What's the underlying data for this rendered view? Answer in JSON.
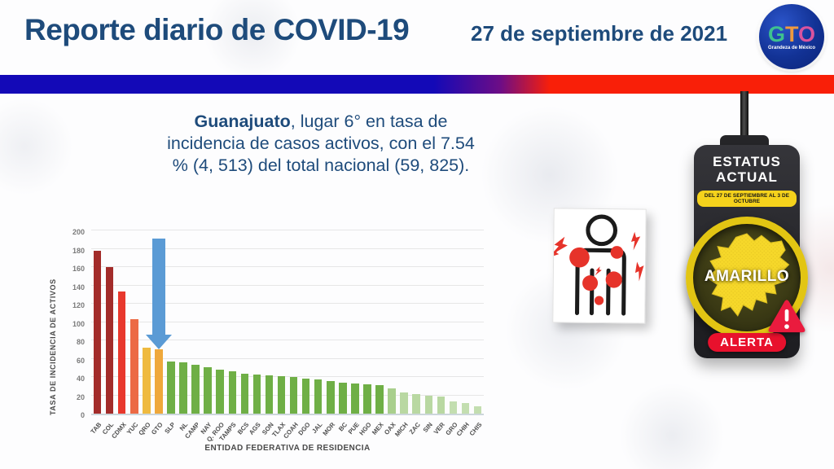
{
  "header": {
    "title": "Reporte diario de COVID-19",
    "date": "27 de septiembre de 2021",
    "logo": {
      "text_g": "G",
      "text_t": "T",
      "text_o": "O",
      "tagline": "Grandeza de México"
    }
  },
  "highlight": {
    "lead": "Guanajuato",
    "rest": ", lugar 6° en tasa de incidencia de casos activos, con el 7.54 % (4, 513) del total nacional (59, 825)."
  },
  "chart_data": {
    "type": "bar",
    "title": "",
    "xlabel": "ENTIDAD FEDERATIVA DE RESIDENCIA",
    "ylabel": "TASA DE INCIDENCIA DE ACTIVOS",
    "ylim": [
      0,
      200
    ],
    "ytick_step": 20,
    "grid": true,
    "legend": "none",
    "categories": [
      "TAB",
      "COL",
      "CDMX",
      "YUC",
      "QRO",
      "GTO",
      "SLP",
      "NL",
      "CAMP",
      "NAY",
      "Q. ROO",
      "TAMPS",
      "BCS",
      "AGS",
      "SON",
      "TLAX",
      "COAH",
      "DGO",
      "JAL",
      "MOR",
      "BC",
      "PUE",
      "HGO",
      "MEX",
      "OAX",
      "MICH",
      "ZAC",
      "SIN",
      "VER",
      "GRO",
      "CHIH",
      "CHIS"
    ],
    "values": [
      178,
      160,
      133,
      103,
      72,
      70,
      57,
      56,
      53,
      51,
      48,
      46,
      44,
      43,
      42,
      41,
      40,
      38,
      37,
      36,
      34,
      33,
      32,
      31,
      28,
      23,
      21,
      20,
      19,
      13,
      12,
      8
    ],
    "colors": [
      "#a32c2a",
      "#a32c2a",
      "#e8382d",
      "#ec6a45",
      "#efba3f",
      "#efa83b",
      "#6faf46",
      "#6faf46",
      "#6faf46",
      "#6faf46",
      "#6faf46",
      "#6faf46",
      "#6faf46",
      "#6faf46",
      "#6faf46",
      "#6faf46",
      "#6faf46",
      "#6faf46",
      "#6faf46",
      "#6faf46",
      "#6faf46",
      "#6faf46",
      "#6faf46",
      "#6faf46",
      "#a9cf8d",
      "#b9d8a2",
      "#b9d8a2",
      "#b9d8a2",
      "#b9d8a2",
      "#c3deb0",
      "#c3deb0",
      "#c3deb0"
    ],
    "annotation": {
      "target": "GTO",
      "shape": "down-arrow",
      "color": "#5b9bd5"
    }
  },
  "status_panel": {
    "title_line1": "ESTATUS",
    "title_line2": "ACTUAL",
    "period": "DEL 27 DE SEPTIEMBRE AL 3 DE OCTUBRE",
    "level": "AMARILLO",
    "alert_label": "ALERTA",
    "colors": {
      "level_light": "#f5d21c",
      "alert": "#e8112d",
      "body": "#242428"
    }
  },
  "symptom_card": {
    "icon": "person-with-pain-points-icon"
  },
  "theme_colors": {
    "accent_navy": "#1e4b7b",
    "stripe_blue": "#1309b7",
    "stripe_red": "#f91f08",
    "arrow_blue": "#5b9bd5"
  }
}
